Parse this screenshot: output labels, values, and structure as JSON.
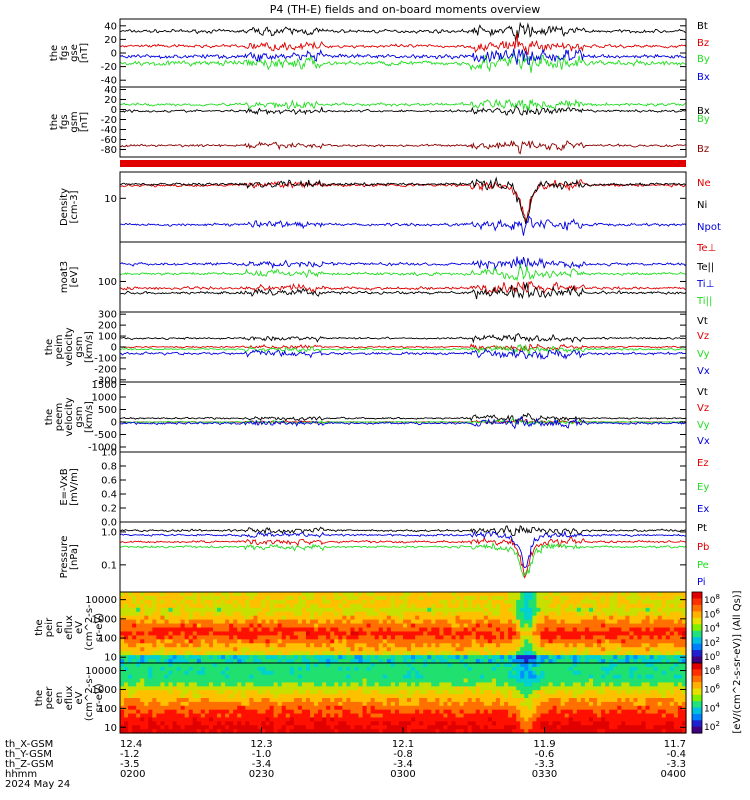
{
  "title": "P4 (TH-E) fields and on-board moments overview",
  "colors": {
    "black": "#000000",
    "red": "#e00000",
    "green": "#22dd22",
    "blue": "#0000e0",
    "darkred": "#8b0000"
  },
  "chart_data": [
    {
      "type": "line",
      "panel": "fgs-gse",
      "ylabel": [
        "the",
        "fgs",
        "gse",
        "[nT]"
      ],
      "y_ticks": [
        "40",
        "20",
        "0",
        "-20",
        "-40"
      ],
      "ylim": [
        -50,
        50
      ],
      "series": [
        {
          "name": "Bt",
          "color": "black",
          "base": 32,
          "noise": 8
        },
        {
          "name": "Bz",
          "color": "red",
          "base": 10,
          "noise": 8
        },
        {
          "name": "By",
          "color": "green",
          "base": -15,
          "noise": 12
        },
        {
          "name": "Bx",
          "color": "blue",
          "base": -5,
          "noise": 10
        }
      ]
    },
    {
      "type": "line",
      "panel": "fgs-gsm",
      "ylabel": [
        "the",
        "fgs",
        "gsm",
        "[nT]"
      ],
      "y_ticks": [
        "40",
        "20",
        "0",
        "-20",
        "-40",
        "-60",
        "-80"
      ],
      "ylim": [
        -95,
        45
      ],
      "series": [
        {
          "name": "Bx",
          "color": "black",
          "base": -3,
          "noise": 8
        },
        {
          "name": "By",
          "color": "green",
          "base": 10,
          "noise": 10
        },
        {
          "name": "Bz",
          "color": "darkred",
          "base": -72,
          "noise": 8
        }
      ]
    },
    {
      "type": "line",
      "panel": "density",
      "ylabel": [
        "Density",
        "[cm-3]"
      ],
      "y_ticks": [
        "10"
      ],
      "yscale": "log",
      "ylim": [
        1,
        40
      ],
      "series": [
        {
          "name": "Ne",
          "color": "red",
          "base": 20,
          "noise": 4
        },
        {
          "name": "Ni",
          "color": "black",
          "base": 21,
          "noise": 4
        },
        {
          "name": "Npot",
          "color": "blue",
          "base": 2.5,
          "noise": 0.3
        }
      ]
    },
    {
      "type": "line",
      "panel": "temperature",
      "ylabel": [
        "moat3",
        "[eV]"
      ],
      "y_ticks": [
        "100"
      ],
      "yscale": "log",
      "ylim": [
        20,
        800
      ],
      "series": [
        {
          "name": "Te⊥",
          "color": "red",
          "base": 70,
          "noise": 5
        },
        {
          "name": "Te||",
          "color": "black",
          "base": 55,
          "noise": 5
        },
        {
          "name": "Ti⊥",
          "color": "blue",
          "base": 250,
          "noise": 60
        },
        {
          "name": "Ti||",
          "color": "green",
          "base": 150,
          "noise": 40
        }
      ]
    },
    {
      "type": "line",
      "panel": "peim-velocity",
      "ylabel": [
        "the",
        "peim",
        "velocity",
        "gsm",
        "[km/s]"
      ],
      "y_ticks": [
        "300",
        "200",
        "100",
        "0",
        "-100",
        "-200",
        "-300"
      ],
      "ylim": [
        -320,
        320
      ],
      "series": [
        {
          "name": "Vt",
          "color": "black",
          "base": 80,
          "noise": 30
        },
        {
          "name": "Vz",
          "color": "red",
          "base": 0,
          "noise": 25
        },
        {
          "name": "Vy",
          "color": "green",
          "base": -20,
          "noise": 30
        },
        {
          "name": "Vx",
          "color": "blue",
          "base": -60,
          "noise": 40
        }
      ]
    },
    {
      "type": "line",
      "panel": "peem-velocity",
      "ylabel": [
        "the",
        "peem",
        "velocity",
        "gsm",
        "[km/s]"
      ],
      "y_ticks": [
        "1500",
        "1000",
        "500",
        "0",
        "-500",
        "-1000"
      ],
      "ylim": [
        -1200,
        1600
      ],
      "series": [
        {
          "name": "Vt",
          "color": "black",
          "base": 150,
          "noise": 120
        },
        {
          "name": "Vz",
          "color": "red",
          "base": 0,
          "noise": 60
        },
        {
          "name": "Vy",
          "color": "green",
          "base": 0,
          "noise": 80
        },
        {
          "name": "Vx",
          "color": "blue",
          "base": -50,
          "noise": 150
        }
      ]
    },
    {
      "type": "line",
      "panel": "efield",
      "ylabel": [
        "E=-VxB",
        "[mV/m]"
      ],
      "y_ticks": [
        "1.0",
        "0.8",
        "0.6",
        "0.4",
        "0.2",
        "0.0"
      ],
      "ylim": [
        0,
        1
      ],
      "series": [
        {
          "name": "Ez",
          "color": "red"
        },
        {
          "name": "Ey",
          "color": "green"
        },
        {
          "name": "Ex",
          "color": "blue"
        }
      ]
    },
    {
      "type": "line",
      "panel": "pressure",
      "ylabel": [
        "Pressure",
        "[nPa]"
      ],
      "y_ticks": [
        "1.0",
        "0.1"
      ],
      "yscale": "log",
      "ylim": [
        0.015,
        2
      ],
      "series": [
        {
          "name": "Pt",
          "color": "black",
          "base": 1.1,
          "noise": 0.1
        },
        {
          "name": "Pb",
          "color": "red",
          "base": 0.5,
          "noise": 0.25
        },
        {
          "name": "Pe",
          "color": "green",
          "base": 0.35,
          "noise": 0.05
        },
        {
          "name": "Pi",
          "color": "blue",
          "base": 0.8,
          "noise": 0.1
        }
      ]
    },
    {
      "type": "heatmap",
      "panel": "peir-spectrogram",
      "ylabel": [
        "the",
        "peir",
        "en",
        "eflux",
        "eV",
        "(cm^2-s-",
        "sr-eV)"
      ],
      "y_ticks": [
        "10000",
        "1000",
        "100",
        "10"
      ],
      "yscale": "log",
      "ylim": [
        5,
        25000
      ]
    },
    {
      "type": "heatmap",
      "panel": "peer-spectrogram",
      "ylabel": [
        "the",
        "peer",
        "en",
        "eflux",
        "eV",
        "(cm^2-s-",
        "sr-eV)"
      ],
      "y_ticks": [
        "10000",
        "1000",
        "100",
        "10"
      ],
      "yscale": "log",
      "ylim": [
        5,
        25000
      ]
    }
  ],
  "colorbar": {
    "label": "[eV/(cm^2-s-sr-eV)] (All Qs)]",
    "upper_ticks": [
      "10^8",
      "10^6",
      "10^4",
      "10^2",
      "10^0"
    ],
    "lower_ticks": [
      "10^8",
      "10^6",
      "10^4",
      "10^2"
    ]
  },
  "time_axis": {
    "rows": [
      {
        "label": "th_X-GSM",
        "values": [
          "12.4",
          "12.3",
          "12.1",
          "11.9",
          "11.7"
        ]
      },
      {
        "label": "th_Y-GSM",
        "values": [
          "-1.2",
          "-1.0",
          "-0.8",
          "-0.6",
          "-0.4"
        ]
      },
      {
        "label": "th_Z-GSM",
        "values": [
          "-3.5",
          "-3.4",
          "-3.4",
          "-3.3",
          "-3.3"
        ]
      },
      {
        "label": "hhmm",
        "values": [
          "0200",
          "0230",
          "0300",
          "0330",
          "0400"
        ]
      }
    ],
    "date": "2024 May 24",
    "xlim": [
      0,
      120
    ]
  }
}
